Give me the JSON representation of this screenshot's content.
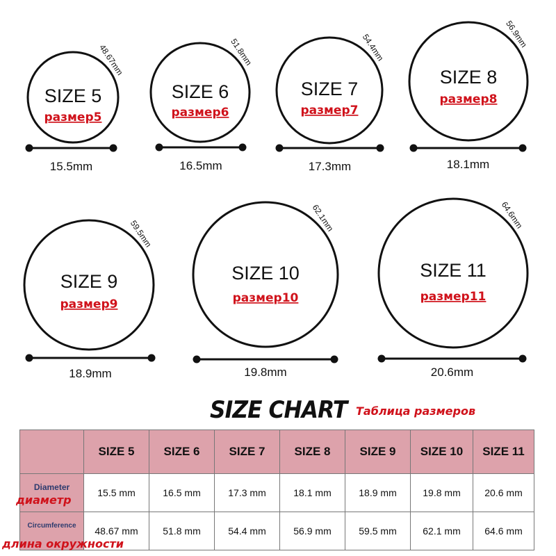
{
  "rings": [
    {
      "size_label": "SIZE 5",
      "ru_label": "размер5",
      "diameter": "15.5mm",
      "circumference": "48.67mm"
    },
    {
      "size_label": "SIZE 6",
      "ru_label": "размер6",
      "diameter": "16.5mm",
      "circumference": "51.8mm"
    },
    {
      "size_label": "SIZE 7",
      "ru_label": "размер7",
      "diameter": "17.3mm",
      "circumference": "54.4mm"
    },
    {
      "size_label": "SIZE 8",
      "ru_label": "размер8",
      "diameter": "18.1mm",
      "circumference": "56.9mm"
    },
    {
      "size_label": "SIZE 9",
      "ru_label": "размер9",
      "diameter": "18.9mm",
      "circumference": "59.5mm"
    },
    {
      "size_label": "SIZE 10",
      "ru_label": "размер10",
      "diameter": "19.8mm",
      "circumference": "62.1mm"
    },
    {
      "size_label": "SIZE 11",
      "ru_label": "размер11",
      "diameter": "20.6mm",
      "circumference": "64.6mm"
    }
  ],
  "chart": {
    "title": "SIZE CHART",
    "subtitle_ru": "Таблица размеров"
  },
  "table": {
    "headers": [
      "SIZE 5",
      "SIZE 6",
      "SIZE 7",
      "SIZE 8",
      "SIZE 9",
      "SIZE 10",
      "SIZE 11"
    ],
    "diameter_label": "Diameter",
    "diameter_label_ru": "диаметр",
    "circumference_label": "Circumference",
    "circumference_label_ru": "длина окружности",
    "diameter_values": [
      "15.5 mm",
      "16.5 mm",
      "17.3 mm",
      "18.1 mm",
      "18.9 mm",
      "19.8 mm",
      "20.6 mm"
    ],
    "circumference_values": [
      "48.67 mm",
      "51.8 mm",
      "54.4 mm",
      "56.9 mm",
      "59.5 mm",
      "62.1 mm",
      "64.6 mm"
    ]
  },
  "colors": {
    "accent_red": "#d0121b",
    "table_header_pink": "#dda2ab",
    "ink": "#111111"
  }
}
